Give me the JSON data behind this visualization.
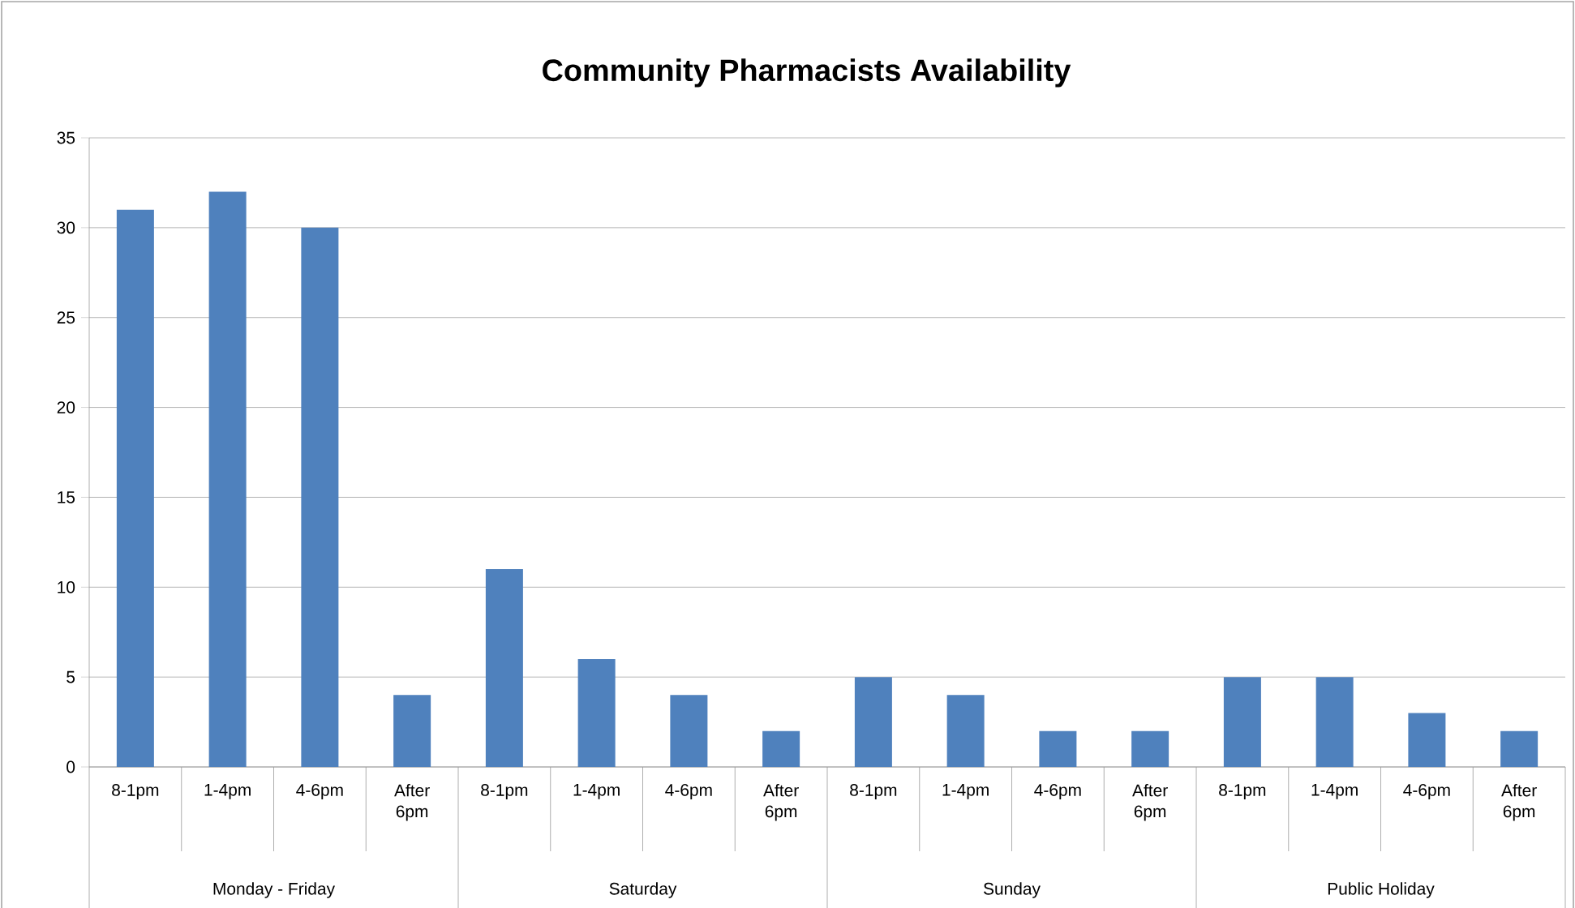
{
  "chart_data": {
    "type": "bar",
    "title": "Community Pharmacists Availability",
    "categories": [
      "8-1pm",
      "1-4pm",
      "4-6pm",
      "After 6pm",
      "8-1pm",
      "1-4pm",
      "4-6pm",
      "After 6pm",
      "8-1pm",
      "1-4pm",
      "4-6pm",
      "After 6pm",
      "8-1pm",
      "1-4pm",
      "4-6pm",
      "After 6pm"
    ],
    "values": [
      31,
      32,
      30,
      4,
      11,
      6,
      4,
      2,
      5,
      4,
      2,
      2,
      5,
      5,
      3,
      2
    ],
    "color": "#4f81bd",
    "annotations": [
      "Monday - Friday",
      "Saturday",
      "Sunday",
      "Public Holiday"
    ],
    "ylim": [
      0,
      35
    ],
    "yticks": [
      0,
      5,
      10,
      15,
      20,
      25,
      30,
      35
    ],
    "grid": "y"
  }
}
